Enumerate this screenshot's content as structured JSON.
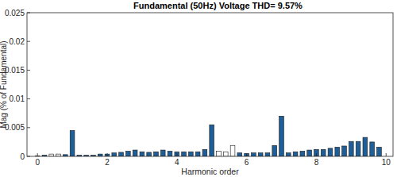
{
  "chart_data": {
    "type": "bar",
    "title": "Fundamental (50Hz) Voltage THD= 9.57%",
    "x_label": "Harmonic order",
    "y_label": "Mag (% of Fundamental)",
    "x": [
      0,
      0.2,
      0.4,
      0.6,
      0.8,
      1,
      1.2,
      1.4,
      1.6,
      1.8,
      2,
      2.2,
      2.4,
      2.6,
      2.8,
      3,
      3.2,
      3.4,
      3.6,
      3.8,
      4,
      4.2,
      4.4,
      4.6,
      4.8,
      5,
      5.2,
      5.4,
      5.6,
      5.8,
      6,
      6.2,
      6.4,
      6.6,
      6.8,
      7,
      7.2,
      7.4,
      7.6,
      7.8,
      8,
      8.2,
      8.4,
      8.6,
      8.8,
      9,
      9.2,
      9.4,
      9.6,
      9.8
    ],
    "values": [
      0.0001,
      0.0002,
      0.0004,
      0.0004,
      0.0003,
      0.0045,
      0.0002,
      0.0002,
      0.0002,
      0.0004,
      0.0004,
      0.0006,
      0.0007,
      0.0009,
      0.0011,
      0.0008,
      0.0007,
      0.0008,
      0.0011,
      0.0009,
      0.0008,
      0.0008,
      0.0008,
      0.0008,
      0.0012,
      0.0055,
      0.0009,
      0.0008,
      0.0019,
      0.0006,
      0.0005,
      0.0006,
      0.0006,
      0.0006,
      0.0019,
      0.007,
      0.0006,
      0.0008,
      0.0009,
      0.0011,
      0.0012,
      0.0012,
      0.0014,
      0.0016,
      0.0018,
      0.0026,
      0.0026,
      0.0033,
      0.0025,
      0.0016
    ],
    "colors": [
      "#1f5f99",
      "#1f5f99",
      "#ffffff",
      "#ffffff",
      "#1f5f99",
      "#1f5f99",
      "#1f5f99",
      "#1f5f99",
      "#1f5f99",
      "#1f5f99",
      "#1f5f99",
      "#1f5f99",
      "#1f5f99",
      "#1f5f99",
      "#1f5f99",
      "#1f5f99",
      "#1f5f99",
      "#1f5f99",
      "#1f5f99",
      "#1f5f99",
      "#1f5f99",
      "#1f5f99",
      "#1f5f99",
      "#1f5f99",
      "#1f5f99",
      "#1f5f99",
      "#ffffff",
      "#ffffff",
      "#ffffff",
      "#1f5f99",
      "#1f5f99",
      "#1f5f99",
      "#1f5f99",
      "#1f5f99",
      "#1f5f99",
      "#1f5f99",
      "#1f5f99",
      "#1f5f99",
      "#1f5f99",
      "#1f5f99",
      "#1f5f99",
      "#1f5f99",
      "#1f5f99",
      "#1f5f99",
      "#1f5f99",
      "#1f5f99",
      "#1f5f99",
      "#1f5f99",
      "#1f5f99",
      "#1f5f99"
    ],
    "xlim": [
      -0.3,
      10.2
    ],
    "xticks": [
      0,
      2,
      4,
      6,
      8,
      10
    ],
    "ylim": [
      0,
      0.025
    ],
    "yticks": [
      0,
      0.005,
      0.01,
      0.015,
      0.02,
      0.025
    ],
    "grid": false
  }
}
